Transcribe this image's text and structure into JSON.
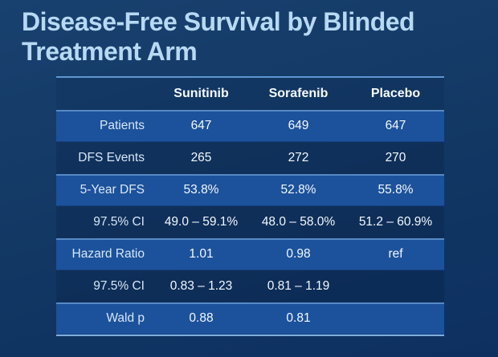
{
  "slide": {
    "title_lines": [
      "Disease-Free Survival by Blinded",
      "Treatment Arm"
    ]
  },
  "table": {
    "column_headers": [
      "",
      "Sunitinib",
      "Sorafenib",
      "Placebo"
    ],
    "rows": [
      {
        "label": "Patients",
        "values": [
          "647",
          "649",
          "647"
        ]
      },
      {
        "label": "DFS Events",
        "values": [
          "265",
          "272",
          "270"
        ]
      },
      {
        "label": "5-Year DFS",
        "values": [
          "53.8%",
          "52.8%",
          "55.8%"
        ]
      },
      {
        "label": "97.5% CI",
        "values": [
          "49.0 – 59.1%",
          "48.0 – 58.0%",
          "51.2 – 60.9%"
        ]
      },
      {
        "label": "Hazard Ratio",
        "values": [
          "1.01",
          "0.98",
          "ref"
        ]
      },
      {
        "label": "97.5% CI",
        "values": [
          "0.83 – 1.23",
          "0.81 – 1.19",
          ""
        ]
      },
      {
        "label": "Wald p",
        "values": [
          "0.88",
          "0.81",
          ""
        ]
      }
    ]
  },
  "colors": {
    "background_top": "#19416F",
    "background_bottom": "#0D3061",
    "title_text": "#B7D9F3",
    "band_row": "#1C529B",
    "band_highlight": "#89B7E8",
    "rule_top": "#5E96D2",
    "rule_bottom": "#7FAEDD",
    "header_text": "#F6FAFE",
    "label_text": "#D7E6F6",
    "value_text": "#F3F8FD"
  }
}
